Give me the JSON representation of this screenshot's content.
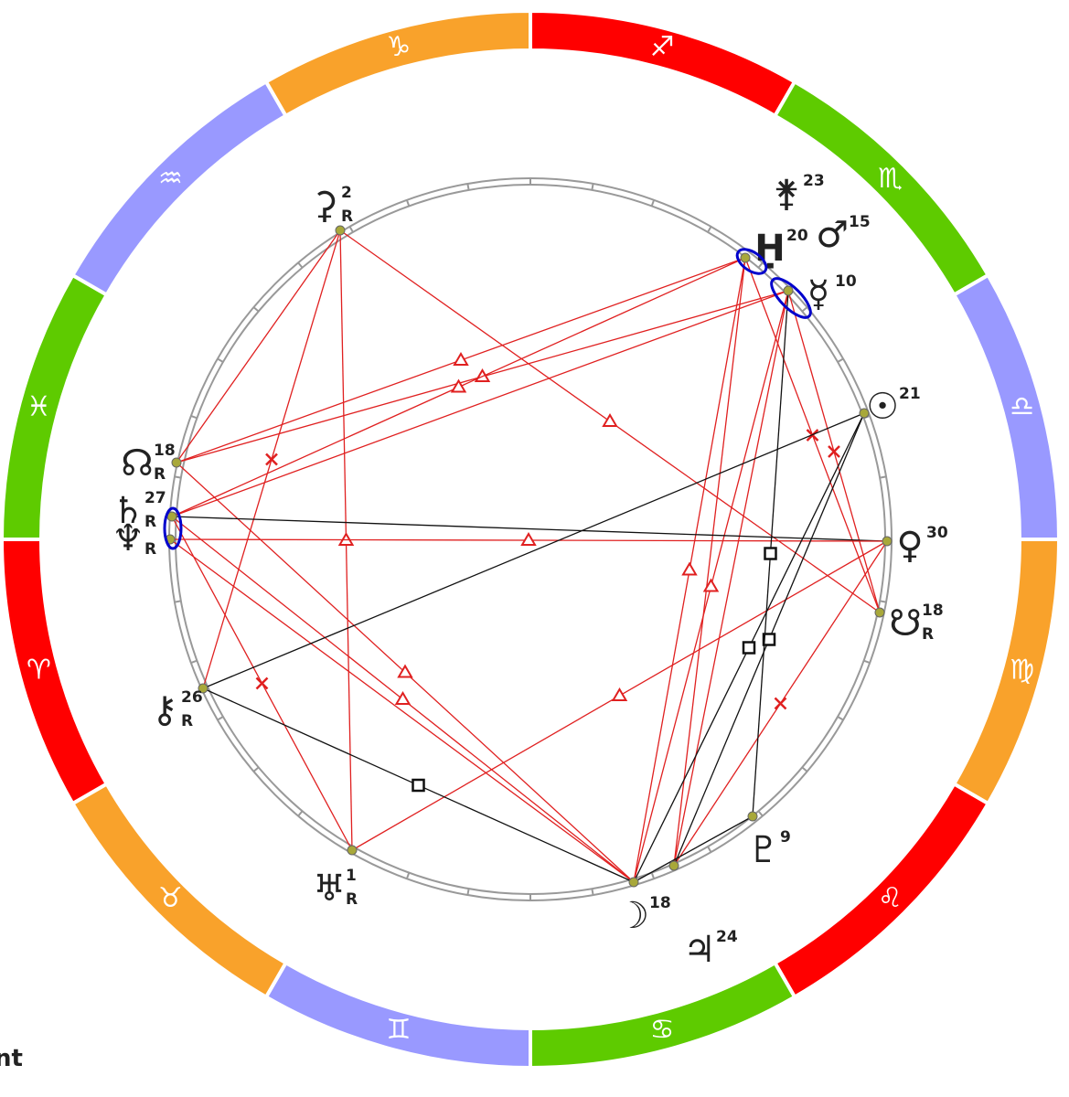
{
  "zodiac": [
    {
      "sign": "♐"
    },
    {
      "sign": "♏"
    },
    {
      "sign": "♎"
    },
    {
      "sign": "♍"
    },
    {
      "sign": "♌"
    },
    {
      "sign": "♋"
    },
    {
      "sign": "♊"
    },
    {
      "sign": "♉"
    },
    {
      "sign": "♈"
    },
    {
      "sign": "♓"
    },
    {
      "sign": "♒"
    },
    {
      "sign": "♑"
    }
  ],
  "planets": [
    {
      "symbol": "⚳",
      "degree": 2,
      "retrograde": "R"
    },
    {
      "symbol": "⚵",
      "degree": 23
    },
    {
      "symbol": "Ḥ",
      "degree": 20
    },
    {
      "symbol": "♂",
      "degree": 15
    },
    {
      "symbol": "☿",
      "degree": 10
    },
    {
      "symbol": "☉",
      "degree": 21
    },
    {
      "symbol": "♀",
      "degree": 30
    },
    {
      "symbol": "☋",
      "degree": 18,
      "retrograde": "R"
    },
    {
      "symbol": "☊",
      "degree": 18,
      "retrograde": "R"
    },
    {
      "symbol": "♄",
      "degree": 27,
      "retrograde": "R"
    },
    {
      "symbol": "♆",
      "retrograde": "R"
    },
    {
      "symbol": "⚷",
      "degree": 26,
      "retrograde": "R"
    },
    {
      "symbol": "♅",
      "degree": 1,
      "retrograde": "R"
    },
    {
      "symbol": "☽",
      "degree": 18
    },
    {
      "symbol": "♃",
      "degree": 24
    },
    {
      "symbol": "♇",
      "degree": 9
    }
  ],
  "footer": "nt"
}
